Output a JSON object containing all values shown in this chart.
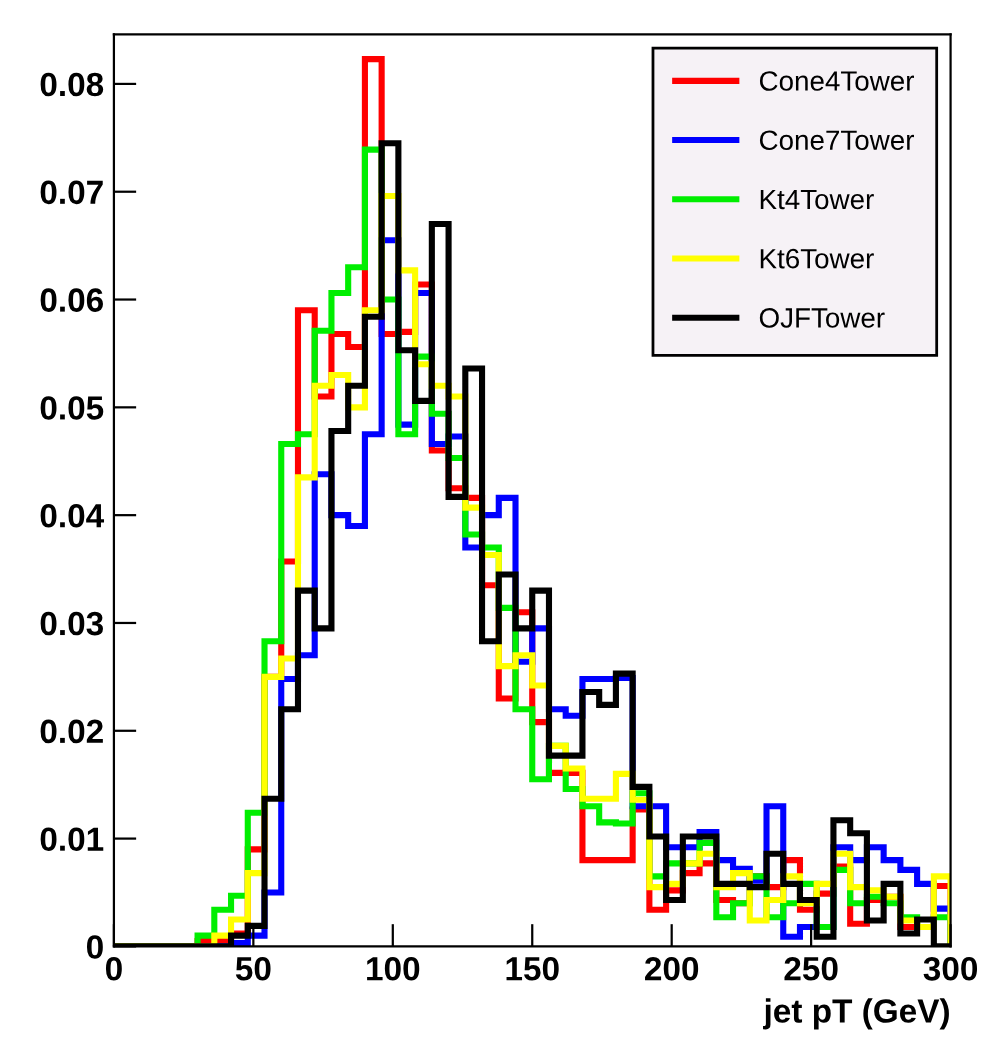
{
  "chart_data": {
    "type": "histogram",
    "xlabel": "jet pT (GeV)",
    "bins": [
      0,
      6,
      12,
      18,
      24,
      30,
      36,
      42,
      48,
      54,
      60,
      66,
      72,
      78,
      84,
      90,
      96,
      102,
      108,
      114,
      120,
      126,
      132,
      138,
      144,
      150,
      156,
      162,
      168,
      174,
      180,
      186,
      192,
      198,
      204,
      210,
      216,
      222,
      228,
      234,
      240,
      246,
      252,
      258,
      264,
      270,
      276,
      282,
      288,
      294,
      300
    ],
    "series": [
      {
        "name": "Cone4Tower",
        "color": "#ff0000",
        "values": [
          0,
          0,
          0,
          0,
          0,
          0.0005,
          0.0006,
          0.0012,
          0.009,
          0.025,
          0.0357,
          0.059,
          0.051,
          0.0568,
          0.0556,
          0.0823,
          0.0568,
          0.057,
          0.0614,
          0.046,
          0.0425,
          0.0416,
          0.0335,
          0.023,
          0.031,
          0.0208,
          0.0161,
          0.0161,
          0.008,
          0.008,
          0.008,
          0.0127,
          0.0034,
          0.0052,
          0.0068,
          0.0077,
          0.0043,
          0.004,
          0.0065,
          0.0055,
          0.008,
          0.0034,
          0.0049,
          0.0074,
          0.0021,
          0.0043,
          0.0046,
          0.0018,
          0.0018,
          0.0056
        ]
      },
      {
        "name": "Cone7Tower",
        "color": "#0000ff",
        "values": [
          0,
          0,
          0,
          0,
          0,
          0,
          0,
          0.0003,
          0.001,
          0.005,
          0.0248,
          0.027,
          0.0438,
          0.04,
          0.039,
          0.0475,
          0.0655,
          0.0484,
          0.0606,
          0.0466,
          0.0473,
          0.037,
          0.04,
          0.0416,
          0.0264,
          0.0295,
          0.022,
          0.0214,
          0.0248,
          0.0248,
          0.0249,
          0.013,
          0.013,
          0.0092,
          0.0092,
          0.0106,
          0.008,
          0.0072,
          0.0061,
          0.013,
          0.0009,
          0.0018,
          0.0018,
          0.0092,
          0.008,
          0.0092,
          0.008,
          0.0071,
          0.0058,
          0.0035
        ]
      },
      {
        "name": "Kt4Tower",
        "color": "#00ee00",
        "values": [
          0,
          0,
          0,
          0,
          0,
          0.001,
          0.0034,
          0.0047,
          0.0124,
          0.0283,
          0.0466,
          0.0475,
          0.0571,
          0.0606,
          0.063,
          0.0739,
          0.06,
          0.0475,
          0.0547,
          0.0494,
          0.0453,
          0.0382,
          0.037,
          0.0314,
          0.022,
          0.0155,
          0.0186,
          0.0146,
          0.013,
          0.0115,
          0.0114,
          0.0142,
          0.0065,
          0.0077,
          0.0077,
          0.0096,
          0.0027,
          0.004,
          0.0065,
          0.0027,
          0.004,
          0.0058,
          0.0018,
          0.0071,
          0.004,
          0.0046,
          0.004,
          0.0027,
          0.0018,
          0.0027
        ]
      },
      {
        "name": "Kt6Tower",
        "color": "#ffff00",
        "values": [
          0,
          0,
          0,
          0,
          0,
          0,
          0.001,
          0.0025,
          0.0068,
          0.025,
          0.0267,
          0.0435,
          0.052,
          0.053,
          0.05,
          0.059,
          0.0696,
          0.0627,
          0.054,
          0.052,
          0.051,
          0.0407,
          0.0363,
          0.026,
          0.027,
          0.0242,
          0.0186,
          0.0165,
          0.0137,
          0.0137,
          0.016,
          0.0136,
          0.0055,
          0.0058,
          0.0077,
          0.0086,
          0.0055,
          0.0068,
          0.0024,
          0.0043,
          0.0065,
          0.004,
          0.0058,
          0.0086,
          0.0055,
          0.0052,
          0.0046,
          0.0024,
          0.0018,
          0.0065
        ]
      },
      {
        "name": "OJFTower",
        "color": "#000000",
        "values": [
          0,
          0,
          0,
          0,
          0,
          0,
          0,
          0.001,
          0.0019,
          0.0137,
          0.022,
          0.033,
          0.0295,
          0.0478,
          0.052,
          0.0584,
          0.0745,
          0.0553,
          0.0506,
          0.067,
          0.0417,
          0.0536,
          0.0283,
          0.0345,
          0.0295,
          0.033,
          0.0177,
          0.0177,
          0.0236,
          0.0224,
          0.0253,
          0.0148,
          0.0102,
          0.0043,
          0.0102,
          0.0102,
          0.0058,
          0.0058,
          0.0055,
          0.0086,
          0.0058,
          0.0043,
          0.0009,
          0.0117,
          0.0105,
          0.0024,
          0.0058,
          0.0012,
          0.0025,
          0
        ]
      }
    ],
    "xlim": [
      0,
      300
    ],
    "ylim": [
      0,
      0.0846
    ],
    "xticks": [
      0,
      50,
      100,
      150,
      200,
      250,
      300
    ],
    "yticks": [
      0,
      0.01,
      0.02,
      0.03,
      0.04,
      0.05,
      0.06,
      0.07,
      0.08
    ],
    "legend": "top right",
    "grid": false
  }
}
